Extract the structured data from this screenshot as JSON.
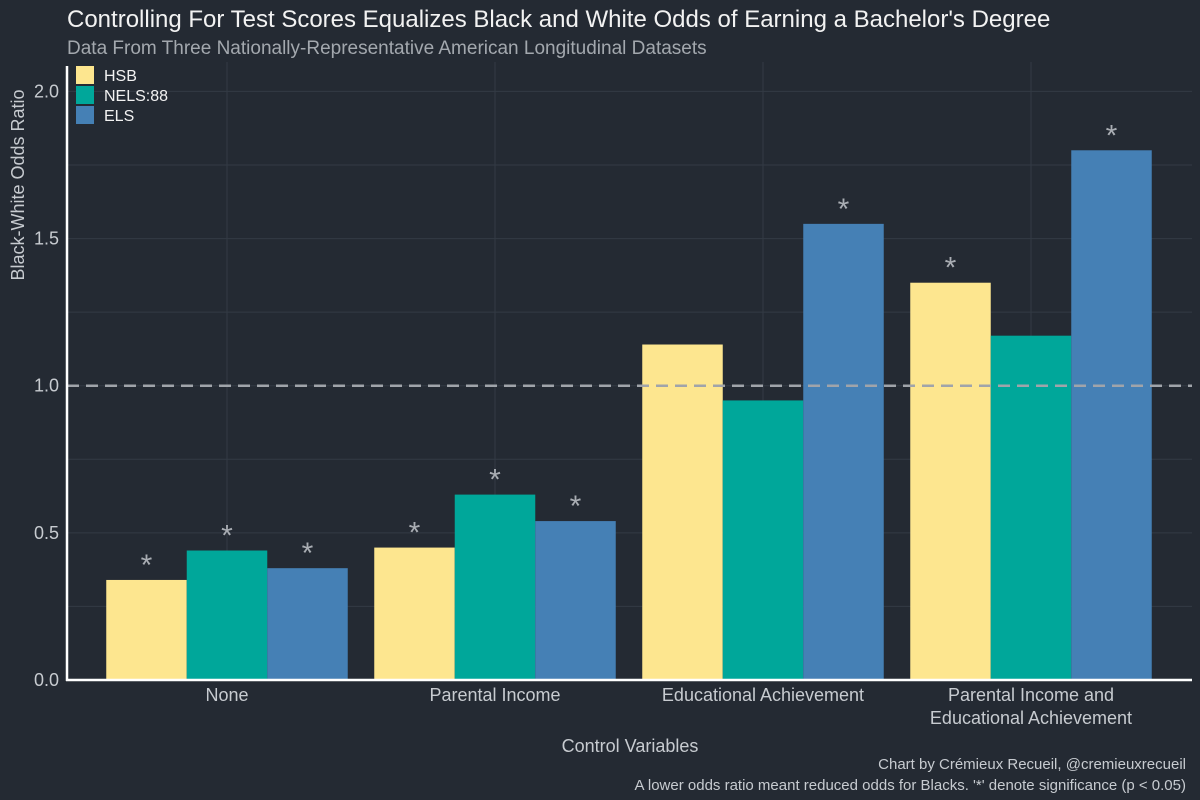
{
  "chart_data": {
    "type": "bar",
    "title": "Controlling For Test Scores Equalizes Black and White Odds of Earning a Bachelor's Degree",
    "subtitle": "Data From Three Nationally-Representative American Longitudinal Datasets",
    "xlabel": "Control Variables",
    "ylabel": "Black-White Odds Ratio",
    "ylim": [
      0,
      2.1
    ],
    "yticks": [
      "0.0",
      "0.5",
      "1.0",
      "1.5",
      "2.0"
    ],
    "reference_line": 1.0,
    "legend_position": "top-left",
    "categories": [
      [
        "None"
      ],
      [
        "Parental Income"
      ],
      [
        "Educational Achievement"
      ],
      [
        "Parental Income and",
        "Educational Achievement"
      ]
    ],
    "series": [
      {
        "name": "HSB",
        "color": "#fde68f",
        "values": [
          0.34,
          0.45,
          1.14,
          1.35
        ],
        "significant": [
          true,
          true,
          false,
          true
        ]
      },
      {
        "name": "NELS:88",
        "color": "#00a79a",
        "values": [
          0.44,
          0.63,
          0.95,
          1.17
        ],
        "significant": [
          true,
          true,
          false,
          false
        ]
      },
      {
        "name": "ELS",
        "color": "#4580b5",
        "values": [
          0.38,
          0.54,
          1.55,
          1.8
        ],
        "significant": [
          true,
          true,
          true,
          true
        ]
      }
    ],
    "significance_marker": "*",
    "caption_lines": [
      "Chart by Crémieux Recueil, @cremieuxrecueil",
      "A lower odds ratio meant reduced odds for Blacks. '*' denote significance (p < 0.05)"
    ]
  }
}
